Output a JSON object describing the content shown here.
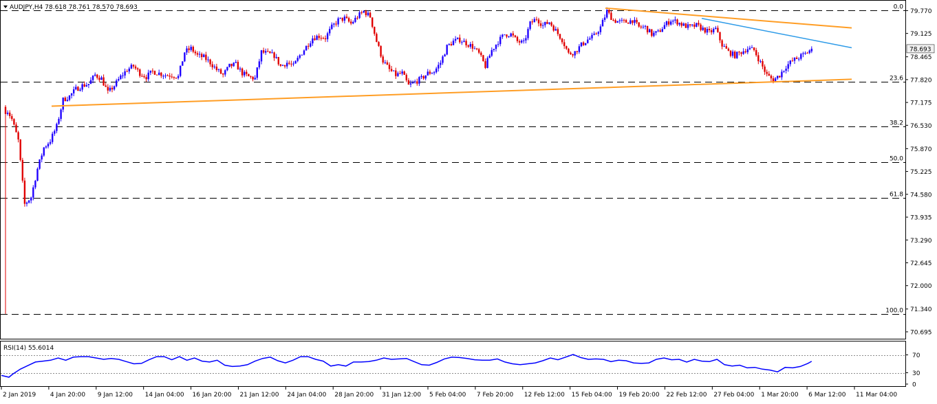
{
  "header": {
    "symbol_line": "AUDJPY,H4  78.618 78.761 78.570 78.693"
  },
  "rsi_header": {
    "label": "RSI(14) 55.6014"
  },
  "colors": {
    "bull": "#1e00ff",
    "bear": "#e00000",
    "wick": "#000000",
    "support_trendline": "#ff9d24",
    "upper_trendline": "#ff9d24",
    "resistance_trendline": "#2e9be8",
    "rsi_line": "#0000ff",
    "current_price_box": "#f1f1f1"
  },
  "chart_data": {
    "type": "candlestick",
    "title": "AUDJPY,H4",
    "ohlc_header": {
      "open": 78.618,
      "high": 78.761,
      "low": 78.57,
      "close": 78.693
    },
    "current_price": 78.693,
    "current_price_label": "78.693",
    "ylim": [
      70.5,
      80.05
    ],
    "y_ticks": [
      "79.770",
      "79.125",
      "78.465",
      "77.820",
      "77.175",
      "76.530",
      "75.870",
      "75.225",
      "74.580",
      "73.935",
      "73.290",
      "72.645",
      "72.000",
      "71.340",
      "70.695"
    ],
    "x_ticks": [
      "2 Jan 2019",
      "4 Jan 20:00",
      "9 Jan 12:00",
      "14 Jan 04:00",
      "16 Jan 20:00",
      "21 Jan 12:00",
      "24 Jan 04:00",
      "28 Jan 20:00",
      "31 Jan 12:00",
      "5 Feb 04:00",
      "7 Feb 20:00",
      "12 Feb 12:00",
      "15 Feb 04:00",
      "19 Feb 20:00",
      "22 Feb 12:00",
      "27 Feb 04:00",
      "1 Mar 20:00",
      "6 Mar 12:00",
      "11 Mar 04:00"
    ],
    "fibonacci_levels": [
      {
        "label": "0.0",
        "value": 79.77
      },
      {
        "label": "23.6",
        "value": 77.75
      },
      {
        "label": "38.2",
        "value": 76.5
      },
      {
        "label": "50.0",
        "value": 75.49
      },
      {
        "label": "61.8",
        "value": 74.48
      },
      {
        "label": "100.0",
        "value": 71.2
      }
    ],
    "trendlines": [
      {
        "name": "support",
        "from": [
          "4 Jan 12:00",
          77.07
        ],
        "to": [
          "11 Mar 20:00",
          77.83
        ]
      },
      {
        "name": "upper-resistance",
        "from": [
          "19 Feb 20:00",
          79.84
        ],
        "to": [
          "11 Mar 20:00",
          79.28
        ]
      },
      {
        "name": "resistance",
        "from": [
          "1 Mar 04:00",
          79.55
        ],
        "to": [
          "11 Mar 20:00",
          78.72
        ]
      }
    ],
    "price_path": [
      [
        0,
        77.05
      ],
      [
        1,
        76.7
      ],
      [
        2,
        76.1
      ],
      [
        3,
        74.3
      ],
      [
        4,
        74.5
      ],
      [
        5,
        75.3
      ],
      [
        6,
        75.9
      ],
      [
        7,
        76.1
      ],
      [
        8,
        76.5
      ],
      [
        9,
        77.25
      ],
      [
        10,
        77.35
      ],
      [
        11,
        77.55
      ],
      [
        12,
        77.65
      ],
      [
        13,
        77.7
      ],
      [
        14,
        77.95
      ],
      [
        15,
        77.85
      ],
      [
        16,
        77.45
      ],
      [
        17,
        77.65
      ],
      [
        18,
        77.9
      ],
      [
        19,
        78.1
      ],
      [
        20,
        78.2
      ],
      [
        21,
        78.0
      ],
      [
        22,
        77.9
      ],
      [
        23,
        78.05
      ],
      [
        24,
        78.0
      ],
      [
        25,
        77.95
      ],
      [
        26,
        77.95
      ],
      [
        27,
        77.9
      ],
      [
        28,
        78.6
      ],
      [
        29,
        78.7
      ],
      [
        30,
        78.5
      ],
      [
        31,
        78.45
      ],
      [
        32,
        78.3
      ],
      [
        33,
        78.1
      ],
      [
        34,
        77.95
      ],
      [
        35,
        78.2
      ],
      [
        36,
        78.25
      ],
      [
        37,
        78.0
      ],
      [
        38,
        77.9
      ],
      [
        39,
        77.85
      ],
      [
        40,
        78.6
      ],
      [
        41,
        78.55
      ],
      [
        42,
        78.5
      ],
      [
        43,
        78.2
      ],
      [
        44,
        78.3
      ],
      [
        45,
        78.2
      ],
      [
        46,
        78.5
      ],
      [
        47,
        78.75
      ],
      [
        48,
        79.0
      ],
      [
        49,
        79.05
      ],
      [
        50,
        79.0
      ],
      [
        51,
        79.3
      ],
      [
        52,
        79.5
      ],
      [
        53,
        79.55
      ],
      [
        54,
        79.4
      ],
      [
        55,
        79.6
      ],
      [
        56,
        79.75
      ],
      [
        57,
        79.6
      ],
      [
        58,
        78.9
      ],
      [
        59,
        78.35
      ],
      [
        60,
        78.1
      ],
      [
        61,
        77.95
      ],
      [
        62,
        78.0
      ],
      [
        63,
        77.65
      ],
      [
        64,
        77.75
      ],
      [
        65,
        77.85
      ],
      [
        66,
        78.0
      ],
      [
        67,
        78.05
      ],
      [
        68,
        78.3
      ],
      [
        69,
        78.75
      ],
      [
        70,
        78.9
      ],
      [
        71,
        78.95
      ],
      [
        72,
        78.85
      ],
      [
        73,
        78.75
      ],
      [
        74,
        78.55
      ],
      [
        75,
        78.2
      ],
      [
        76,
        78.65
      ],
      [
        77,
        78.9
      ],
      [
        78,
        79.1
      ],
      [
        79,
        79.1
      ],
      [
        80,
        78.9
      ],
      [
        81,
        78.85
      ],
      [
        82,
        79.4
      ],
      [
        83,
        79.55
      ],
      [
        84,
        79.35
      ],
      [
        85,
        79.45
      ],
      [
        86,
        79.2
      ],
      [
        87,
        78.95
      ],
      [
        88,
        78.55
      ],
      [
        89,
        78.6
      ],
      [
        90,
        78.8
      ],
      [
        91,
        78.95
      ],
      [
        92,
        79.05
      ],
      [
        93,
        79.3
      ],
      [
        94,
        79.75
      ],
      [
        95,
        79.5
      ],
      [
        96,
        79.45
      ],
      [
        97,
        79.45
      ],
      [
        98,
        79.5
      ],
      [
        99,
        79.3
      ],
      [
        100,
        79.3
      ],
      [
        101,
        79.1
      ],
      [
        102,
        79.15
      ],
      [
        103,
        79.35
      ],
      [
        104,
        79.5
      ],
      [
        105,
        79.45
      ],
      [
        106,
        79.35
      ],
      [
        107,
        79.3
      ],
      [
        108,
        79.35
      ],
      [
        109,
        79.25
      ],
      [
        110,
        79.15
      ],
      [
        111,
        79.25
      ],
      [
        112,
        78.8
      ],
      [
        113,
        78.6
      ],
      [
        114,
        78.5
      ],
      [
        115,
        78.6
      ],
      [
        116,
        78.7
      ],
      [
        117,
        78.65
      ],
      [
        118,
        78.3
      ],
      [
        119,
        77.95
      ],
      [
        120,
        77.8
      ],
      [
        121,
        77.95
      ],
      [
        122,
        78.2
      ],
      [
        123,
        78.35
      ],
      [
        124,
        78.45
      ],
      [
        125,
        78.55
      ],
      [
        126,
        78.69
      ]
    ],
    "spike_low": {
      "at": "2 Jan 2019",
      "value": 71.2
    },
    "rsi": {
      "name": "RSI(14)",
      "last_value": 55.6014,
      "ylim": [
        0,
        100
      ],
      "levels": [
        {
          "label": "70",
          "value": 70
        },
        {
          "label": "30",
          "value": 30
        }
      ],
      "y_ticks": [
        "70",
        "30",
        "0"
      ],
      "path": [
        [
          0,
          24
        ],
        [
          2,
          20
        ],
        [
          3,
          27
        ],
        [
          5,
          38
        ],
        [
          7,
          46
        ],
        [
          9,
          54
        ],
        [
          11,
          56
        ],
        [
          13,
          58
        ],
        [
          15,
          63
        ],
        [
          17,
          58
        ],
        [
          19,
          65
        ],
        [
          21,
          66
        ],
        [
          23,
          66
        ],
        [
          25,
          63
        ],
        [
          27,
          60
        ],
        [
          29,
          62
        ],
        [
          31,
          60
        ],
        [
          33,
          55
        ],
        [
          35,
          50
        ],
        [
          37,
          51
        ],
        [
          39,
          59
        ],
        [
          41,
          66
        ],
        [
          43,
          66
        ],
        [
          45,
          59
        ],
        [
          47,
          66
        ],
        [
          49,
          58
        ],
        [
          51,
          63
        ],
        [
          53,
          56
        ],
        [
          55,
          54
        ],
        [
          57,
          58
        ],
        [
          59,
          47
        ],
        [
          61,
          44
        ],
        [
          63,
          45
        ],
        [
          65,
          48
        ],
        [
          67,
          56
        ],
        [
          69,
          62
        ],
        [
          71,
          65
        ],
        [
          73,
          57
        ],
        [
          75,
          52
        ],
        [
          77,
          58
        ],
        [
          79,
          66
        ],
        [
          81,
          66
        ],
        [
          83,
          60
        ],
        [
          85,
          56
        ],
        [
          87,
          45
        ],
        [
          89,
          48
        ],
        [
          91,
          45
        ],
        [
          93,
          54
        ],
        [
          95,
          54
        ],
        [
          97,
          55
        ],
        [
          99,
          58
        ],
        [
          101,
          63
        ],
        [
          103,
          60
        ],
        [
          105,
          61
        ],
        [
          107,
          62
        ],
        [
          109,
          55
        ],
        [
          111,
          48
        ],
        [
          113,
          47
        ],
        [
          115,
          53
        ],
        [
          117,
          61
        ],
        [
          119,
          65
        ],
        [
          121,
          64
        ],
        [
          123,
          62
        ],
        [
          125,
          59
        ],
        [
          127,
          58
        ],
        [
          129,
          58
        ],
        [
          131,
          61
        ],
        [
          133,
          54
        ],
        [
          135,
          50
        ],
        [
          137,
          48
        ],
        [
          139,
          50
        ],
        [
          141,
          52
        ],
        [
          143,
          57
        ],
        [
          145,
          63
        ],
        [
          147,
          59
        ],
        [
          149,
          65
        ],
        [
          151,
          71
        ],
        [
          153,
          64
        ],
        [
          155,
          60
        ],
        [
          157,
          61
        ],
        [
          159,
          60
        ],
        [
          161,
          55
        ],
        [
          163,
          58
        ],
        [
          165,
          57
        ],
        [
          167,
          52
        ],
        [
          169,
          51
        ],
        [
          171,
          52
        ],
        [
          173,
          60
        ],
        [
          175,
          63
        ],
        [
          177,
          59
        ],
        [
          179,
          60
        ],
        [
          181,
          54
        ],
        [
          183,
          60
        ],
        [
          185,
          56
        ],
        [
          187,
          55
        ],
        [
          189,
          60
        ],
        [
          191,
          48
        ],
        [
          193,
          45
        ],
        [
          195,
          47
        ],
        [
          197,
          41
        ],
        [
          199,
          42
        ],
        [
          201,
          38
        ],
        [
          203,
          36
        ],
        [
          205,
          32
        ],
        [
          207,
          42
        ],
        [
          209,
          41
        ],
        [
          211,
          44
        ],
        [
          213,
          51
        ],
        [
          214,
          55.6
        ]
      ]
    }
  }
}
